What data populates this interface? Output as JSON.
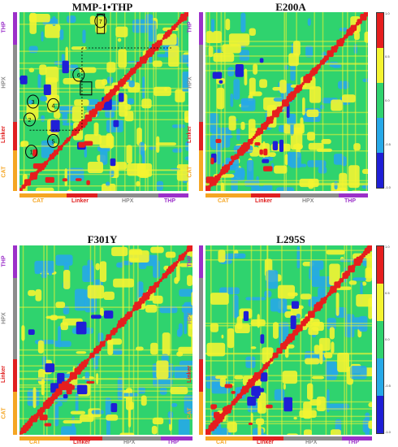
{
  "panels": [
    {
      "title": "MMP-1•THP",
      "annotated": true
    },
    {
      "title": "E200A",
      "annotated": false
    },
    {
      "title": "F301Y",
      "annotated": false
    },
    {
      "title": "L295S",
      "annotated": false
    }
  ],
  "domains": {
    "cat": "CAT",
    "linker": "Linker",
    "hpx": "HPX",
    "thp": "THP"
  },
  "domain_colors": {
    "cat": "#f5a623",
    "linker": "#e02020",
    "hpx": "#8c8c8c",
    "thp": "#9b30c9"
  },
  "heatmap_colors": {
    "neg1": "#1f1fd6",
    "neg05": "#27a9e8",
    "zero": "#2fd36e",
    "pos05": "#f4f432",
    "pos1": "#e61e1e"
  },
  "colorbar_ticks": [
    "1.0",
    "0.5",
    "0.0",
    "-0.5",
    "-1.0"
  ],
  "annotation_numbers": [
    "1",
    "2",
    "3",
    "4",
    "5",
    "6",
    "7"
  ]
}
